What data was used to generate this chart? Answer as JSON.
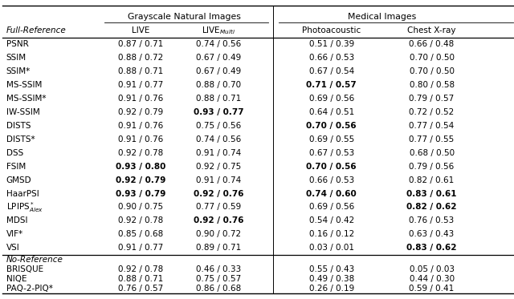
{
  "title_left": "Grayscale Natural Images",
  "title_right": "Medical Images",
  "section1_label": "Full-Reference",
  "section2_label": "No-Reference",
  "rows_fr": [
    {
      "name": "PSNR",
      "live": "0.87 / 0.71",
      "live_multi": "0.74 / 0.56",
      "photo": "0.51 / 0.39",
      "chest": "0.66 / 0.48",
      "bold": {
        "live": false,
        "live_multi": false,
        "photo": false,
        "chest": false
      }
    },
    {
      "name": "SSIM",
      "live": "0.88 / 0.72",
      "live_multi": "0.67 / 0.49",
      "photo": "0.66 / 0.53",
      "chest": "0.70 / 0.50",
      "bold": {
        "live": false,
        "live_multi": false,
        "photo": false,
        "chest": false
      }
    },
    {
      "name": "SSIM*",
      "live": "0.88 / 0.71",
      "live_multi": "0.67 / 0.49",
      "photo": "0.67 / 0.54",
      "chest": "0.70 / 0.50",
      "bold": {
        "live": false,
        "live_multi": false,
        "photo": false,
        "chest": false
      }
    },
    {
      "name": "MS-SSIM",
      "live": "0.91 / 0.77",
      "live_multi": "0.88 / 0.70",
      "photo": "0.71 / 0.57",
      "chest": "0.80 / 0.58",
      "bold": {
        "live": false,
        "live_multi": false,
        "photo": true,
        "chest": false
      }
    },
    {
      "name": "MS-SSIM*",
      "live": "0.91 / 0.76",
      "live_multi": "0.88 / 0.71",
      "photo": "0.69 / 0.56",
      "chest": "0.79 / 0.57",
      "bold": {
        "live": false,
        "live_multi": false,
        "photo": false,
        "chest": false
      }
    },
    {
      "name": "IW-SSIM",
      "live": "0.92 / 0.79",
      "live_multi": "0.93 / 0.77",
      "photo": "0.64 / 0.51",
      "chest": "0.72 / 0.52",
      "bold": {
        "live": false,
        "live_multi": true,
        "photo": false,
        "chest": false
      }
    },
    {
      "name": "DISTS",
      "live": "0.91 / 0.76",
      "live_multi": "0.75 / 0.56",
      "photo": "0.70 / 0.56",
      "chest": "0.77 / 0.54",
      "bold": {
        "live": false,
        "live_multi": false,
        "photo": true,
        "chest": false
      }
    },
    {
      "name": "DISTS*",
      "live": "0.91 / 0.76",
      "live_multi": "0.74 / 0.56",
      "photo": "0.69 / 0.55",
      "chest": "0.77 / 0.55",
      "bold": {
        "live": false,
        "live_multi": false,
        "photo": false,
        "chest": false
      }
    },
    {
      "name": "DSS",
      "live": "0.92 / 0.78",
      "live_multi": "0.91 / 0.74",
      "photo": "0.67 / 0.53",
      "chest": "0.68 / 0.50",
      "bold": {
        "live": false,
        "live_multi": false,
        "photo": false,
        "chest": false
      }
    },
    {
      "name": "FSIM",
      "live": "0.93 / 0.80",
      "live_multi": "0.92 / 0.75",
      "photo": "0.70 / 0.56",
      "chest": "0.79 / 0.56",
      "bold": {
        "live": true,
        "live_multi": false,
        "photo": true,
        "chest": false
      }
    },
    {
      "name": "GMSD",
      "live": "0.92 / 0.79",
      "live_multi": "0.91 / 0.74",
      "photo": "0.66 / 0.53",
      "chest": "0.82 / 0.61",
      "bold": {
        "live": true,
        "live_multi": false,
        "photo": false,
        "chest": false
      }
    },
    {
      "name": "HaarPSI",
      "live": "0.93 / 0.79",
      "live_multi": "0.92 / 0.76",
      "photo": "0.74 / 0.60",
      "chest": "0.83 / 0.61",
      "bold": {
        "live": true,
        "live_multi": true,
        "photo": true,
        "chest": true
      }
    },
    {
      "name": "LPIPS*_Alex",
      "live": "0.90 / 0.75",
      "live_multi": "0.77 / 0.59",
      "photo": "0.69 / 0.56",
      "chest": "0.82 / 0.62",
      "bold": {
        "live": false,
        "live_multi": false,
        "photo": false,
        "chest": true
      }
    },
    {
      "name": "MDSI",
      "live": "0.92 / 0.78",
      "live_multi": "0.92 / 0.76",
      "photo": "0.54 / 0.42",
      "chest": "0.76 / 0.53",
      "bold": {
        "live": false,
        "live_multi": true,
        "photo": false,
        "chest": false
      }
    },
    {
      "name": "VIF*",
      "live": "0.85 / 0.68",
      "live_multi": "0.90 / 0.72",
      "photo": "0.16 / 0.12",
      "chest": "0.63 / 0.43",
      "bold": {
        "live": false,
        "live_multi": false,
        "photo": false,
        "chest": false
      }
    },
    {
      "name": "VSI",
      "live": "0.91 / 0.77",
      "live_multi": "0.89 / 0.71",
      "photo": "0.03 / 0.01",
      "chest": "0.83 / 0.62",
      "bold": {
        "live": false,
        "live_multi": false,
        "photo": false,
        "chest": true
      }
    }
  ],
  "rows_nr": [
    {
      "name": "BRISQUE",
      "live": "0.92 / 0.78",
      "live_multi": "0.46 / 0.33",
      "photo": "0.55 / 0.43",
      "chest": "0.05 / 0.03",
      "bold": {
        "live": false,
        "live_multi": false,
        "photo": false,
        "chest": false
      }
    },
    {
      "name": "NIQE",
      "live": "0.88 / 0.71",
      "live_multi": "0.75 / 0.57",
      "photo": "0.49 / 0.38",
      "chest": "0.44 / 0.30",
      "bold": {
        "live": false,
        "live_multi": false,
        "photo": false,
        "chest": false
      }
    },
    {
      "name": "PAQ-2-PIQ*",
      "live": "0.76 / 0.57",
      "live_multi": "0.86 / 0.68",
      "photo": "0.26 / 0.19",
      "chest": "0.59 / 0.41",
      "bold": {
        "live": false,
        "live_multi": false,
        "photo": false,
        "chest": false
      }
    }
  ],
  "bg_color": "#ffffff",
  "figsize": [
    6.4,
    3.73
  ],
  "dpi": 100
}
